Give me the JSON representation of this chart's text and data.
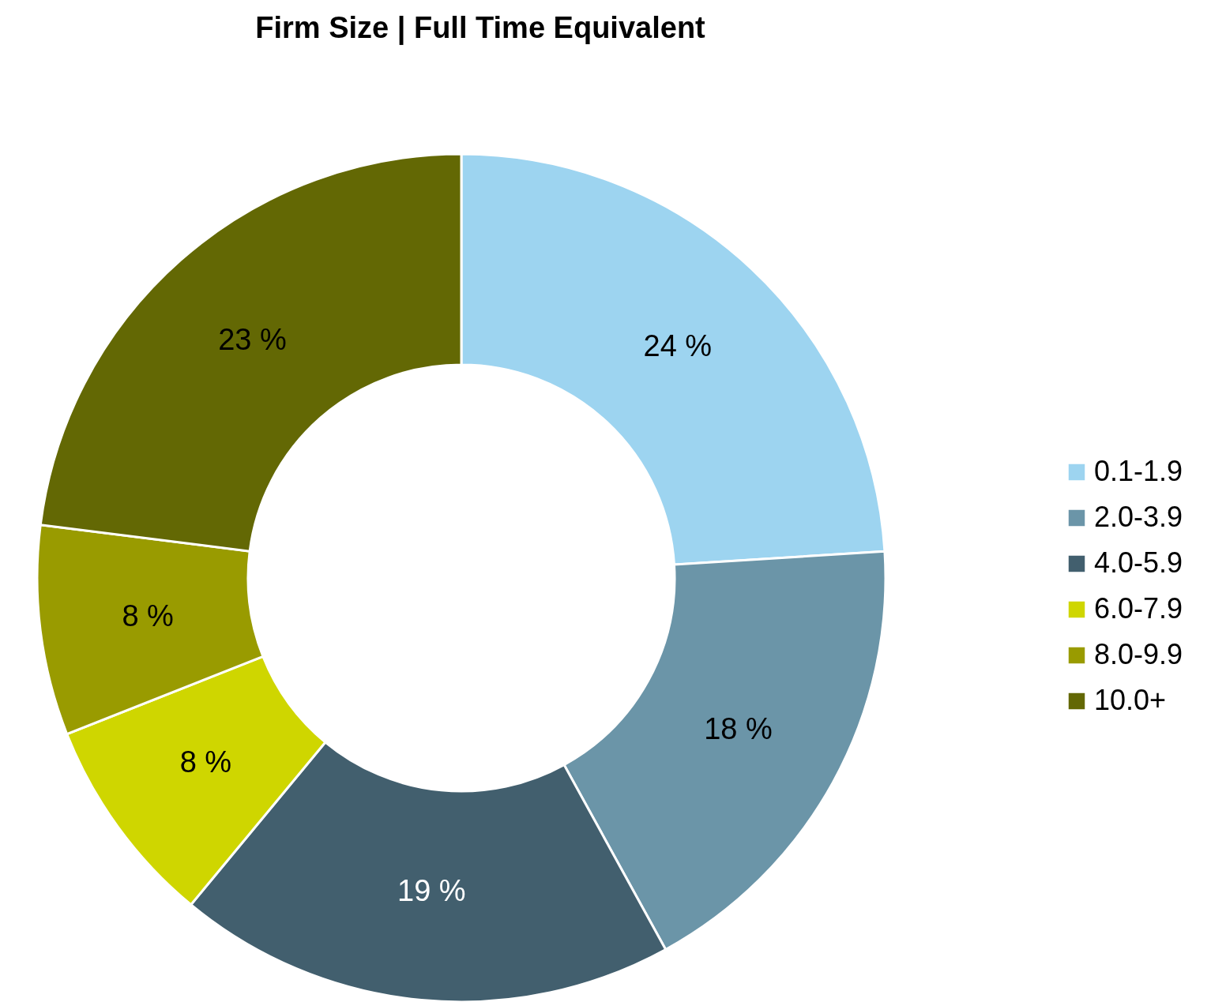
{
  "chart_data": {
    "type": "donut",
    "title": "Firm Size | Full Time Equivalent",
    "categories": [
      "0.1-1.9",
      "2.0-3.9",
      "4.0-5.9",
      "6.0-7.9",
      "8.0-9.9",
      "10.0+"
    ],
    "values": [
      24,
      18,
      19,
      8,
      8,
      23
    ],
    "colors": [
      "#9dd4f0",
      "#6b95a8",
      "#425f6e",
      "#cfd600",
      "#999b00",
      "#636804"
    ],
    "value_labels": [
      "24 %",
      "18 %",
      "19 %",
      "8 %",
      "8 %",
      "23 %"
    ],
    "legend": "right"
  }
}
